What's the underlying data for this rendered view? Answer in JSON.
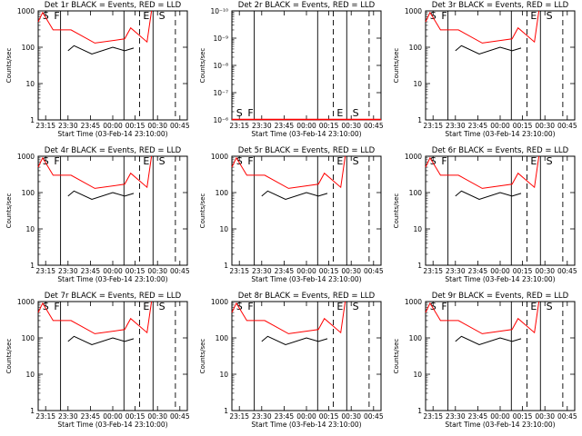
{
  "chart_data": [
    {
      "type": "line",
      "title": "Det 1r BLACK = Events, RED = LLD",
      "xlabel": "Start Time (03-Feb-14 23:10:00)",
      "ylabel": "Counts/sec",
      "x_tick_labels": [
        "23:15",
        "23:30",
        "23:45",
        "00:00",
        "00:15",
        "00:30",
        "00:45"
      ],
      "y_tick_labels": [
        "1",
        "10",
        "100",
        "1000"
      ],
      "y_scale": "log",
      "ylim": [
        1,
        1000
      ],
      "markers": [
        "S",
        "F",
        "E",
        "S"
      ],
      "series": [
        {
          "name": "LLD",
          "color": "#ff0000",
          "values": [
            {
              "t": 0,
              "y": 500
            },
            {
              "t": 3,
              "y": 900
            },
            {
              "t": 10,
              "y": 300
            },
            {
              "t": 22,
              "y": 300
            },
            {
              "t": 38,
              "y": 130
            },
            {
              "t": 58,
              "y": 170
            },
            {
              "t": 62,
              "y": 340
            },
            {
              "t": 73,
              "y": 140
            },
            {
              "t": 76,
              "y": 1000
            }
          ]
        },
        {
          "name": "Events",
          "color": "#000000",
          "values": [
            {
              "t": 20,
              "y": 80
            },
            {
              "t": 24,
              "y": 110
            },
            {
              "t": 36,
              "y": 65
            },
            {
              "t": 50,
              "y": 100
            },
            {
              "t": 58,
              "y": 80
            },
            {
              "t": 64,
              "y": 95
            }
          ]
        }
      ]
    },
    {
      "type": "line",
      "title": "Det 2r BLACK = Events, RED = LLD",
      "xlabel": "Start Time (03-Feb-14 23:10:00)",
      "ylabel": "Counts/sec",
      "x_tick_labels": [
        "23:15",
        "23:30",
        "23:45",
        "00:00",
        "00:15",
        "00:30",
        "00:45"
      ],
      "y_tick_labels": [
        "10⁻⁶",
        "10⁻⁷",
        "10⁻⁸",
        "10⁻⁹",
        "10⁻¹⁰"
      ],
      "y_scale": "log",
      "ylim": [
        1e-10,
        1e-06
      ],
      "markers": [
        "S",
        "F",
        "E",
        "S"
      ],
      "series": []
    },
    {
      "type": "line",
      "title": "Det 3r BLACK = Events, RED = LLD",
      "xlabel": "Start Time (03-Feb-14 23:10:00)",
      "ylabel": "Counts/sec",
      "x_tick_labels": [
        "23:15",
        "23:30",
        "23:45",
        "00:00",
        "00:15",
        "00:30",
        "00:45"
      ],
      "y_tick_labels": [
        "1",
        "10",
        "100",
        "1000"
      ],
      "y_scale": "log",
      "ylim": [
        1,
        1000
      ],
      "markers": [
        "S",
        "F",
        "E",
        "S"
      ],
      "series": [
        {
          "name": "LLD",
          "color": "#ff0000",
          "values": [
            {
              "t": 0,
              "y": 500
            },
            {
              "t": 3,
              "y": 900
            },
            {
              "t": 10,
              "y": 300
            },
            {
              "t": 22,
              "y": 300
            },
            {
              "t": 38,
              "y": 130
            },
            {
              "t": 58,
              "y": 170
            },
            {
              "t": 62,
              "y": 340
            },
            {
              "t": 73,
              "y": 140
            },
            {
              "t": 76,
              "y": 1000
            }
          ]
        },
        {
          "name": "Events",
          "color": "#000000",
          "values": [
            {
              "t": 20,
              "y": 80
            },
            {
              "t": 24,
              "y": 110
            },
            {
              "t": 36,
              "y": 65
            },
            {
              "t": 50,
              "y": 100
            },
            {
              "t": 58,
              "y": 80
            },
            {
              "t": 64,
              "y": 95
            }
          ]
        }
      ]
    },
    {
      "type": "line",
      "title": "Det 4r BLACK = Events, RED = LLD",
      "xlabel": "Start Time (03-Feb-14 23:10:00)",
      "ylabel": "Counts/sec",
      "x_tick_labels": [
        "23:15",
        "23:30",
        "23:45",
        "00:00",
        "00:15",
        "00:30",
        "00:45"
      ],
      "y_tick_labels": [
        "1",
        "10",
        "100",
        "1000"
      ],
      "y_scale": "log",
      "ylim": [
        1,
        1000
      ],
      "markers": [
        "S",
        "F",
        "E",
        "S"
      ],
      "series": [
        {
          "name": "LLD",
          "color": "#ff0000",
          "values": [
            {
              "t": 0,
              "y": 500
            },
            {
              "t": 3,
              "y": 900
            },
            {
              "t": 10,
              "y": 300
            },
            {
              "t": 22,
              "y": 300
            },
            {
              "t": 38,
              "y": 130
            },
            {
              "t": 58,
              "y": 170
            },
            {
              "t": 62,
              "y": 340
            },
            {
              "t": 73,
              "y": 140
            },
            {
              "t": 76,
              "y": 1000
            }
          ]
        },
        {
          "name": "Events",
          "color": "#000000",
          "values": [
            {
              "t": 20,
              "y": 80
            },
            {
              "t": 24,
              "y": 110
            },
            {
              "t": 36,
              "y": 65
            },
            {
              "t": 50,
              "y": 100
            },
            {
              "t": 58,
              "y": 80
            },
            {
              "t": 64,
              "y": 95
            }
          ]
        }
      ]
    },
    {
      "type": "line",
      "title": "Det 5r BLACK = Events, RED = LLD",
      "xlabel": "Start Time (03-Feb-14 23:10:00)",
      "ylabel": "Counts/sec",
      "x_tick_labels": [
        "23:15",
        "23:30",
        "23:45",
        "00:00",
        "00:15",
        "00:30",
        "00:45"
      ],
      "y_tick_labels": [
        "1",
        "10",
        "100",
        "1000"
      ],
      "y_scale": "log",
      "ylim": [
        1,
        1000
      ],
      "markers": [
        "S",
        "F",
        "E",
        "S"
      ],
      "series": [
        {
          "name": "LLD",
          "color": "#ff0000",
          "values": [
            {
              "t": 0,
              "y": 500
            },
            {
              "t": 3,
              "y": 900
            },
            {
              "t": 10,
              "y": 300
            },
            {
              "t": 22,
              "y": 300
            },
            {
              "t": 38,
              "y": 130
            },
            {
              "t": 58,
              "y": 170
            },
            {
              "t": 62,
              "y": 340
            },
            {
              "t": 73,
              "y": 140
            },
            {
              "t": 76,
              "y": 1000
            }
          ]
        },
        {
          "name": "Events",
          "color": "#000000",
          "values": [
            {
              "t": 20,
              "y": 80
            },
            {
              "t": 24,
              "y": 110
            },
            {
              "t": 36,
              "y": 65
            },
            {
              "t": 50,
              "y": 100
            },
            {
              "t": 58,
              "y": 80
            },
            {
              "t": 64,
              "y": 95
            }
          ]
        }
      ]
    },
    {
      "type": "line",
      "title": "Det 6r BLACK = Events, RED = LLD",
      "xlabel": "Start Time (03-Feb-14 23:10:00)",
      "ylabel": "Counts/sec",
      "x_tick_labels": [
        "23:15",
        "23:30",
        "23:45",
        "00:00",
        "00:15",
        "00:30",
        "00:45"
      ],
      "y_tick_labels": [
        "1",
        "10",
        "100",
        "1000"
      ],
      "y_scale": "log",
      "ylim": [
        1,
        1000
      ],
      "markers": [
        "S",
        "F",
        "E",
        "S"
      ],
      "series": [
        {
          "name": "LLD",
          "color": "#ff0000",
          "values": [
            {
              "t": 0,
              "y": 500
            },
            {
              "t": 3,
              "y": 900
            },
            {
              "t": 10,
              "y": 300
            },
            {
              "t": 22,
              "y": 300
            },
            {
              "t": 38,
              "y": 130
            },
            {
              "t": 58,
              "y": 170
            },
            {
              "t": 62,
              "y": 340
            },
            {
              "t": 73,
              "y": 140
            },
            {
              "t": 76,
              "y": 1000
            }
          ]
        },
        {
          "name": "Events",
          "color": "#000000",
          "values": [
            {
              "t": 20,
              "y": 80
            },
            {
              "t": 24,
              "y": 110
            },
            {
              "t": 36,
              "y": 65
            },
            {
              "t": 50,
              "y": 100
            },
            {
              "t": 58,
              "y": 80
            },
            {
              "t": 64,
              "y": 95
            }
          ]
        }
      ]
    },
    {
      "type": "line",
      "title": "Det 7r BLACK = Events, RED = LLD",
      "xlabel": "Start Time (03-Feb-14 23:10:00)",
      "ylabel": "Counts/sec",
      "x_tick_labels": [
        "23:15",
        "23:30",
        "23:45",
        "00:00",
        "00:15",
        "00:30",
        "00:45"
      ],
      "y_tick_labels": [
        "1",
        "10",
        "100",
        "1000"
      ],
      "y_scale": "log",
      "ylim": [
        1,
        1000
      ],
      "markers": [
        "S",
        "F",
        "E",
        "S"
      ],
      "series": [
        {
          "name": "LLD",
          "color": "#ff0000",
          "values": [
            {
              "t": 0,
              "y": 500
            },
            {
              "t": 3,
              "y": 900
            },
            {
              "t": 10,
              "y": 300
            },
            {
              "t": 22,
              "y": 300
            },
            {
              "t": 38,
              "y": 130
            },
            {
              "t": 58,
              "y": 170
            },
            {
              "t": 62,
              "y": 340
            },
            {
              "t": 73,
              "y": 140
            },
            {
              "t": 76,
              "y": 1000
            }
          ]
        },
        {
          "name": "Events",
          "color": "#000000",
          "values": [
            {
              "t": 20,
              "y": 80
            },
            {
              "t": 24,
              "y": 110
            },
            {
              "t": 36,
              "y": 65
            },
            {
              "t": 50,
              "y": 100
            },
            {
              "t": 58,
              "y": 80
            },
            {
              "t": 64,
              "y": 95
            }
          ]
        }
      ]
    },
    {
      "type": "line",
      "title": "Det 8r BLACK = Events, RED = LLD",
      "xlabel": "Start Time (03-Feb-14 23:10:00)",
      "ylabel": "Counts/sec",
      "x_tick_labels": [
        "23:15",
        "23:30",
        "23:45",
        "00:00",
        "00:15",
        "00:30",
        "00:45"
      ],
      "y_tick_labels": [
        "1",
        "10",
        "100",
        "1000"
      ],
      "y_scale": "log",
      "ylim": [
        1,
        1000
      ],
      "markers": [
        "S",
        "F",
        "E",
        "S"
      ],
      "series": [
        {
          "name": "LLD",
          "color": "#ff0000",
          "values": [
            {
              "t": 0,
              "y": 500
            },
            {
              "t": 3,
              "y": 900
            },
            {
              "t": 10,
              "y": 300
            },
            {
              "t": 22,
              "y": 300
            },
            {
              "t": 38,
              "y": 130
            },
            {
              "t": 58,
              "y": 170
            },
            {
              "t": 62,
              "y": 340
            },
            {
              "t": 73,
              "y": 140
            },
            {
              "t": 76,
              "y": 1000
            }
          ]
        },
        {
          "name": "Events",
          "color": "#000000",
          "values": [
            {
              "t": 20,
              "y": 80
            },
            {
              "t": 24,
              "y": 110
            },
            {
              "t": 36,
              "y": 65
            },
            {
              "t": 50,
              "y": 100
            },
            {
              "t": 58,
              "y": 80
            },
            {
              "t": 64,
              "y": 95
            }
          ]
        }
      ]
    },
    {
      "type": "line",
      "title": "Det 9r BLACK = Events, RED = LLD",
      "xlabel": "Start Time (03-Feb-14 23:10:00)",
      "ylabel": "Counts/sec",
      "x_tick_labels": [
        "23:15",
        "23:30",
        "23:45",
        "00:00",
        "00:15",
        "00:30",
        "00:45"
      ],
      "y_tick_labels": [
        "1",
        "10",
        "100",
        "1000"
      ],
      "y_scale": "log",
      "ylim": [
        1,
        1000
      ],
      "markers": [
        "S",
        "F",
        "E",
        "S"
      ],
      "series": [
        {
          "name": "LLD",
          "color": "#ff0000",
          "values": [
            {
              "t": 0,
              "y": 500
            },
            {
              "t": 3,
              "y": 900
            },
            {
              "t": 10,
              "y": 300
            },
            {
              "t": 22,
              "y": 300
            },
            {
              "t": 38,
              "y": 130
            },
            {
              "t": 58,
              "y": 170
            },
            {
              "t": 62,
              "y": 340
            },
            {
              "t": 73,
              "y": 140
            },
            {
              "t": 76,
              "y": 1000
            }
          ]
        },
        {
          "name": "Events",
          "color": "#000000",
          "values": [
            {
              "t": 20,
              "y": 80
            },
            {
              "t": 24,
              "y": 110
            },
            {
              "t": 36,
              "y": 65
            },
            {
              "t": 50,
              "y": 100
            },
            {
              "t": 58,
              "y": 80
            },
            {
              "t": 64,
              "y": 95
            }
          ]
        }
      ]
    }
  ]
}
